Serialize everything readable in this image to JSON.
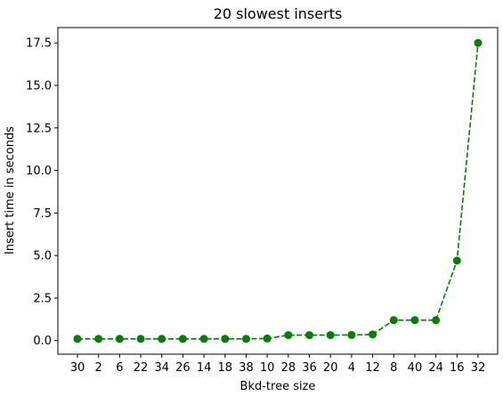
{
  "chart_data": {
    "type": "line",
    "title": "20 slowest inserts",
    "xlabel": "Bkd-tree size",
    "ylabel": "Insert time in seconds",
    "categories": [
      "30",
      "2",
      "6",
      "22",
      "34",
      "26",
      "14",
      "18",
      "38",
      "10",
      "28",
      "36",
      "20",
      "4",
      "12",
      "8",
      "40",
      "24",
      "16",
      "32"
    ],
    "series": [
      {
        "values": [
          0.1,
          0.1,
          0.1,
          0.1,
          0.1,
          0.1,
          0.1,
          0.1,
          0.1,
          0.12,
          0.32,
          0.32,
          0.32,
          0.33,
          0.36,
          1.2,
          1.2,
          1.2,
          4.7,
          17.5
        ],
        "color": "#008000",
        "line_style": "dashed",
        "marker": "circle"
      }
    ],
    "yticks": [
      "0.0",
      "2.5",
      "5.0",
      "7.5",
      "10.0",
      "12.5",
      "15.0",
      "17.5"
    ],
    "ylim": [
      -0.8,
      18.4
    ],
    "grid": false
  }
}
